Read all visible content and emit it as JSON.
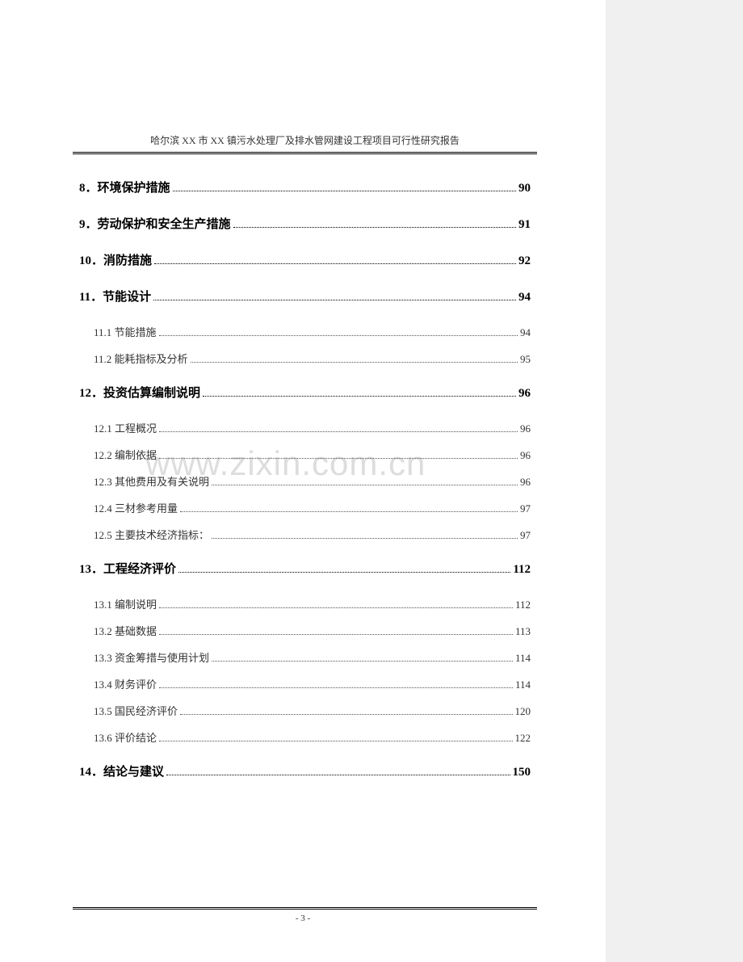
{
  "header": {
    "title": "哈尔滨 XX 市 XX 镇污水处理厂及排水管网建设工程项目可行性研究报告"
  },
  "watermark": "www.zixin.com.cn",
  "toc": [
    {
      "level": 1,
      "label": "8．环境保护措施",
      "page": "90"
    },
    {
      "level": 1,
      "label": "9．劳动保护和安全生产措施",
      "page": "91"
    },
    {
      "level": 1,
      "label": "10．消防措施",
      "page": "92"
    },
    {
      "level": 1,
      "label": "11．节能设计",
      "page": "94"
    },
    {
      "level": 2,
      "label": "11.1 节能措施",
      "page": "94"
    },
    {
      "level": 2,
      "label": "11.2 能耗指标及分析",
      "page": "95"
    },
    {
      "level": 1,
      "label": "12．投资估算编制说明",
      "page": "96"
    },
    {
      "level": 2,
      "label": "12.1 工程概况",
      "page": "96"
    },
    {
      "level": 2,
      "label": "12.2 编制依据",
      "page": "96"
    },
    {
      "level": 2,
      "label": "12.3 其他费用及有关说明",
      "page": "96"
    },
    {
      "level": 2,
      "label": "12.4 三材参考用量",
      "page": "97"
    },
    {
      "level": 2,
      "label": "12.5 主要技术经济指标：",
      "page": "97"
    },
    {
      "level": 1,
      "label": "13．工程经济评价",
      "page": "112"
    },
    {
      "level": 2,
      "label": "13.1 编制说明",
      "page": "112"
    },
    {
      "level": 2,
      "label": "13.2 基础数据",
      "page": "113"
    },
    {
      "level": 2,
      "label": "13.3 资金筹措与使用计划",
      "page": "114"
    },
    {
      "level": 2,
      "label": "13.4 财务评价",
      "page": "114"
    },
    {
      "level": 2,
      "label": "13.5 国民经济评价",
      "page": "120"
    },
    {
      "level": 2,
      "label": "13.6 评价结论",
      "page": "122"
    },
    {
      "level": 1,
      "label": "14．结论与建议",
      "page": "150"
    }
  ],
  "footer": {
    "pageNumber": "- 3 -"
  }
}
